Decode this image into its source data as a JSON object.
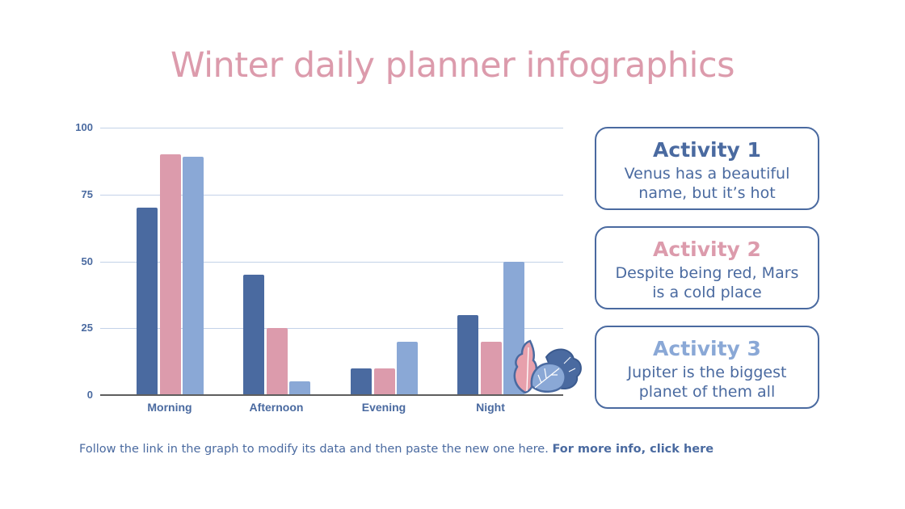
{
  "title": "Winter daily planner infographics",
  "colors": {
    "series1": "#4a6aa0",
    "series2": "#dc9bac",
    "series3": "#8aa8d6",
    "title": "#dc9bac",
    "text": "#4a6aa0"
  },
  "chart_data": {
    "type": "bar",
    "title": "",
    "xlabel": "",
    "ylabel": "",
    "ylim": [
      0,
      100
    ],
    "yticks": [
      0,
      25,
      50,
      75,
      100
    ],
    "grid": true,
    "legend": "none",
    "categories": [
      "Morning",
      "Afternoon",
      "Evening",
      "Night"
    ],
    "series": [
      {
        "name": "Activity 1",
        "color": "#4a6aa0",
        "values": [
          70,
          45,
          10,
          30
        ]
      },
      {
        "name": "Activity 2",
        "color": "#dc9bac",
        "values": [
          90,
          25,
          10,
          20
        ]
      },
      {
        "name": "Activity 3",
        "color": "#8aa8d6",
        "values": [
          89,
          5,
          20,
          50
        ]
      }
    ]
  },
  "axis": {
    "yticks": [
      "100",
      "75",
      "50",
      "25",
      "0"
    ],
    "xlabels": [
      "Morning",
      "Afternoon",
      "Evening",
      "Night"
    ]
  },
  "activities": [
    {
      "title": "Activity 1",
      "line1": "Venus has a beautiful",
      "line2": "name, but it’s hot",
      "color": "#4a6aa0"
    },
    {
      "title": "Activity 2",
      "line1": "Despite being red, Mars",
      "line2": "is a cold place",
      "color": "#dc9bac"
    },
    {
      "title": "Activity 3",
      "line1": "Jupiter is the biggest",
      "line2": "planet of them all",
      "color": "#8aa8d6"
    }
  ],
  "footer": {
    "text": "Follow the link in the graph to modify its data and then paste the new one here. ",
    "link": "For more info, click here"
  }
}
